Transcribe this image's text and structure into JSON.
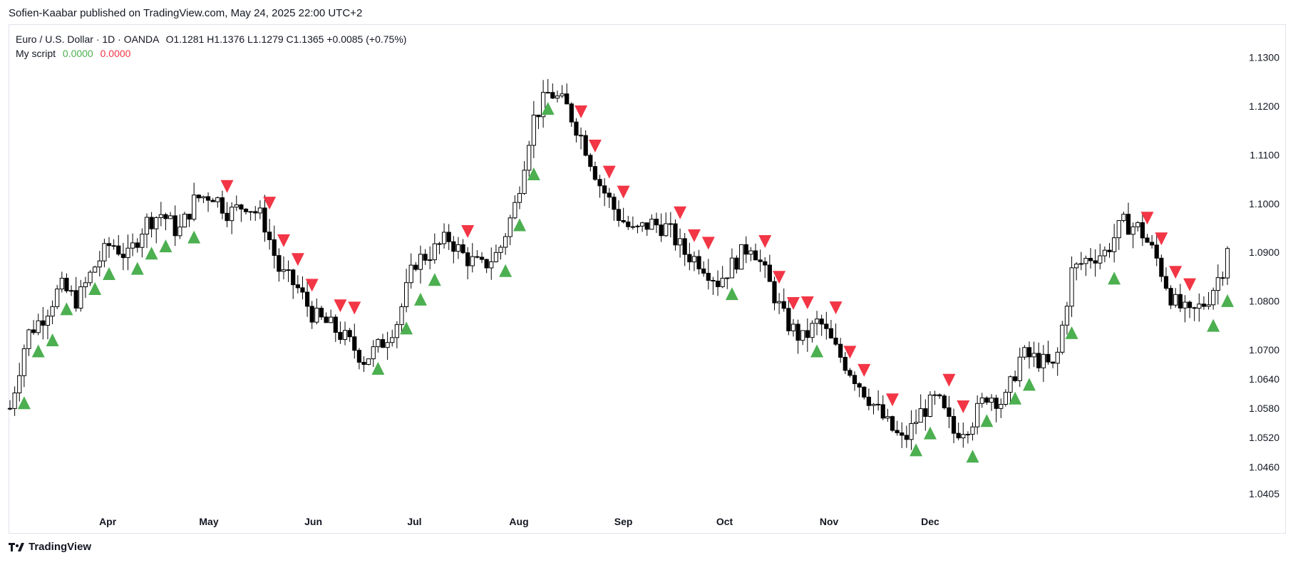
{
  "publisher_line": "Sofien-Kaabar published on TradingView.com, May 24, 2025 22:00 UTC+2",
  "legend": {
    "symbol": "Euro / U.S. Dollar · 1D · OANDA",
    "ohlc": "O1.1281  H1.1376  L1.1279  C1.1365  +0.0085 (+0.75%)",
    "indicator_name": "My script",
    "indicator_value_1": "0.0000",
    "indicator_value_2": "0.0000"
  },
  "footer": {
    "brand": "TradingView"
  },
  "colors": {
    "up_candle_fill": "#ffffff",
    "down_candle_fill": "#000000",
    "candle_outline": "#000000",
    "bull_signal": "#4caf50",
    "bear_signal": "#f23645"
  },
  "chart_data": {
    "type": "candlestick",
    "y_ticks": [
      "1.1300",
      "1.1200",
      "1.1100",
      "1.1000",
      "1.0900",
      "1.0800",
      "1.0700",
      "1.0640",
      "1.0580",
      "1.0520",
      "1.0460",
      "1.0405"
    ],
    "x_ticks": [
      "Apr",
      "May",
      "Jun",
      "Jul",
      "Aug",
      "Sep",
      "Oct",
      "Nov",
      "Dec"
    ],
    "ylim": [
      1.038,
      1.133
    ],
    "close_path": [
      [
        0,
        1.058
      ],
      [
        5,
        1.073
      ],
      [
        10,
        1.077
      ],
      [
        15,
        1.083
      ],
      [
        20,
        1.08
      ],
      [
        25,
        1.087
      ],
      [
        30,
        1.092
      ],
      [
        35,
        1.089
      ],
      [
        40,
        1.096
      ],
      [
        45,
        1.098
      ],
      [
        50,
        1.094
      ],
      [
        55,
        1.101
      ],
      [
        60,
        1.102
      ],
      [
        65,
        1.098
      ],
      [
        70,
        1.1
      ],
      [
        75,
        1.097
      ],
      [
        80,
        1.086
      ],
      [
        85,
        1.083
      ],
      [
        90,
        1.077
      ],
      [
        95,
        1.075
      ],
      [
        100,
        1.072
      ],
      [
        105,
        1.068
      ],
      [
        110,
        1.071
      ],
      [
        115,
        1.076
      ],
      [
        120,
        1.088
      ],
      [
        125,
        1.09
      ],
      [
        130,
        1.093
      ],
      [
        135,
        1.089
      ],
      [
        140,
        1.087
      ],
      [
        145,
        1.09
      ],
      [
        150,
        1.1
      ],
      [
        155,
        1.117
      ],
      [
        160,
        1.123
      ],
      [
        165,
        1.12
      ],
      [
        170,
        1.113
      ],
      [
        175,
        1.104
      ],
      [
        180,
        1.098
      ],
      [
        185,
        1.094
      ],
      [
        190,
        1.096
      ],
      [
        195,
        1.095
      ],
      [
        200,
        1.09
      ],
      [
        205,
        1.088
      ],
      [
        210,
        1.084
      ],
      [
        215,
        1.088
      ],
      [
        220,
        1.092
      ],
      [
        225,
        1.084
      ],
      [
        230,
        1.076
      ],
      [
        235,
        1.072
      ],
      [
        240,
        1.076
      ],
      [
        245,
        1.07
      ],
      [
        250,
        1.065
      ],
      [
        255,
        1.06
      ],
      [
        260,
        1.055
      ],
      [
        265,
        1.051
      ],
      [
        270,
        1.057
      ],
      [
        275,
        1.06
      ],
      [
        280,
        1.053
      ],
      [
        285,
        1.055
      ],
      [
        290,
        1.061
      ],
      [
        295,
        1.059
      ],
      [
        300,
        1.069
      ],
      [
        305,
        1.068
      ],
      [
        310,
        1.066
      ],
      [
        315,
        1.086
      ],
      [
        320,
        1.089
      ],
      [
        325,
        1.09
      ],
      [
        330,
        1.096
      ],
      [
        335,
        1.095
      ],
      [
        340,
        1.089
      ],
      [
        345,
        1.08
      ],
      [
        350,
        1.077
      ],
      [
        355,
        1.08
      ],
      [
        360,
        1.087
      ],
      [
        362,
        1.095
      ]
    ],
    "bull_signals": [
      0.9,
      1.4,
      3.0,
      4.2,
      5.0,
      6.1,
      6.6,
      7.3,
      8.1,
      9.0,
      9.8,
      10.6,
      11.7,
      13.4,
      14.3,
      15.6,
      18.2,
      20.7,
      26.5,
      27.0,
      27.6,
      28.4,
      29.5,
      32.8,
      35.3,
      35.9,
      36.4,
      37.7,
      38.1,
      38.7,
      39.2,
      40.3,
      48.2,
      48.6,
      49.0,
      52.5,
      53.2,
      53.6,
      54.2,
      56.8,
      59.5,
      60.3,
      60.8,
      62.0,
      64.3,
      65.7,
      67.0,
      67.6,
      67.9,
      68.6,
      69.5,
      71.2,
      72.1,
      72.7,
      73.7
    ]
  }
}
